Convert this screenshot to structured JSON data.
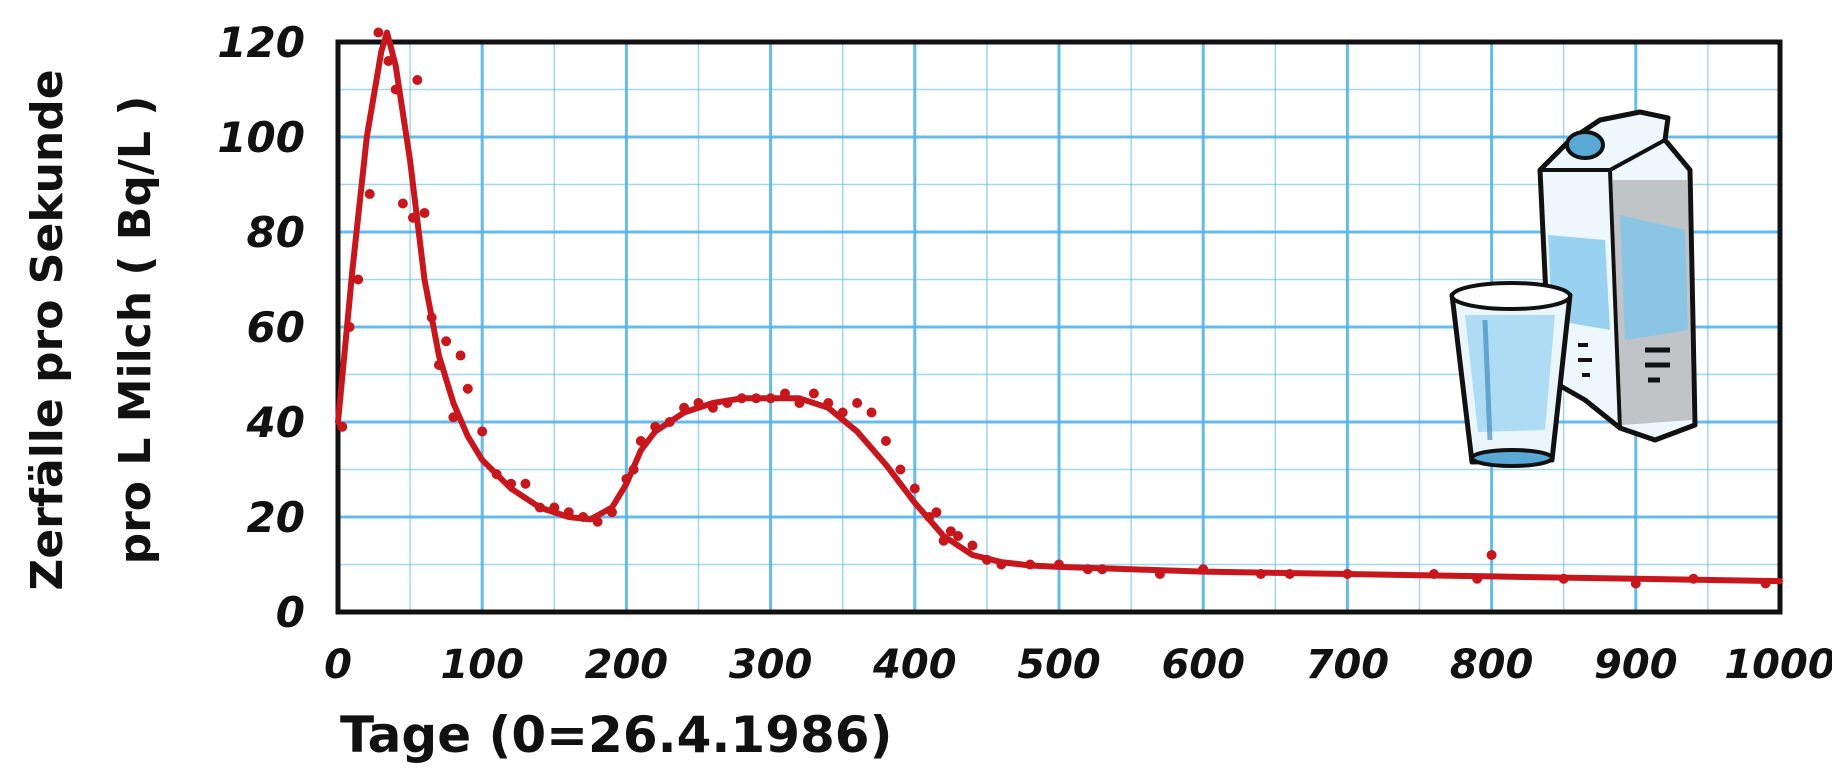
{
  "chart_data": {
    "type": "scatter",
    "xlabel": "Tage  (0=26.4.1986)",
    "ylabel_line1": "Zerfälle pro Sekunde",
    "ylabel_line2": "pro L Milch ( Bq/L )",
    "xlim": [
      0,
      1000
    ],
    "ylim": [
      0,
      120
    ],
    "x_ticks": [
      "0",
      "100",
      "200",
      "300",
      "400",
      "500",
      "600",
      "700",
      "800",
      "900",
      "1000"
    ],
    "y_ticks": [
      "0",
      "20",
      "40",
      "60",
      "80",
      "100",
      "120"
    ],
    "grid": true,
    "legend": "none",
    "series": [
      {
        "kind": "points",
        "x": [
          3,
          8,
          14,
          22,
          28,
          35,
          40,
          45,
          52,
          55,
          60,
          65,
          70,
          75,
          80,
          85,
          90,
          100,
          110,
          120,
          130,
          140,
          150,
          160,
          170,
          180,
          190,
          200,
          205,
          210,
          220,
          230,
          240,
          250,
          260,
          270,
          280,
          290,
          300,
          310,
          320,
          330,
          340,
          350,
          360,
          370,
          380,
          390,
          400,
          410,
          415,
          420,
          425,
          430,
          440,
          450,
          460,
          480,
          500,
          520,
          530,
          570,
          600,
          640,
          660,
          700,
          760,
          790,
          800,
          850,
          900,
          940,
          990
        ],
        "y": [
          39,
          60,
          70,
          88,
          122,
          116,
          110,
          86,
          83,
          112,
          84,
          62,
          52,
          57,
          41,
          54,
          47,
          38,
          29,
          27,
          27,
          22,
          22,
          21,
          20,
          19,
          21,
          28,
          30,
          36,
          39,
          40,
          43,
          44,
          43,
          44,
          45,
          45,
          45,
          46,
          44,
          46,
          44,
          42,
          44,
          42,
          36,
          30,
          26,
          20,
          21,
          15,
          17,
          16,
          14,
          11,
          10,
          10,
          10,
          9,
          9,
          8,
          9,
          8,
          8,
          8,
          8,
          7,
          12,
          7,
          6,
          7,
          6
        ]
      },
      {
        "kind": "fit-curve",
        "x": [
          0,
          10,
          20,
          30,
          34,
          40,
          50,
          60,
          70,
          80,
          90,
          100,
          110,
          120,
          140,
          160,
          175,
          190,
          200,
          210,
          220,
          240,
          260,
          280,
          300,
          320,
          340,
          360,
          380,
          400,
          420,
          440,
          460,
          480,
          500,
          550,
          600,
          700,
          800,
          900,
          1000
        ],
        "y": [
          40,
          72,
          100,
          118,
          122,
          115,
          95,
          70,
          54,
          44,
          37,
          32,
          29,
          26,
          22,
          20,
          19.5,
          22,
          27,
          34,
          38,
          42,
          44,
          45,
          45,
          45,
          43,
          38,
          31,
          23,
          16,
          12,
          10.5,
          9.8,
          9.5,
          9,
          8.5,
          8,
          7.5,
          7,
          6.5
        ]
      }
    ],
    "colors": {
      "curve": "#c8161d",
      "points": "#c8161d",
      "grid": "#55b4e8",
      "frame": "#111111",
      "milk_blue": "#7cc6ec"
    },
    "decoration": [
      "milk-carton-icon",
      "glass-of-milk-icon"
    ]
  }
}
